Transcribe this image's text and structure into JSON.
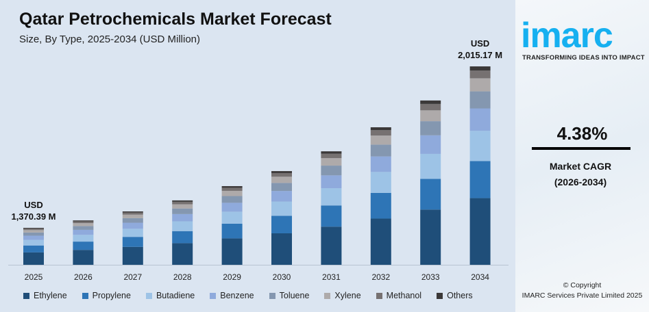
{
  "title": "Qatar Petrochemicals Market Forecast",
  "subtitle": "Size, By Type, 2025-2034 (USD Million)",
  "chart_data": {
    "type": "bar",
    "stacked": true,
    "categories": [
      "2025",
      "2026",
      "2027",
      "2028",
      "2029",
      "2030",
      "2031",
      "2032",
      "2033",
      "2034"
    ],
    "totals": [
      1370.39,
      1400,
      1436,
      1480,
      1537,
      1597,
      1676,
      1772,
      1879,
      2015.17
    ],
    "series_shares": [
      {
        "name": "Ethylene",
        "share": 0.336,
        "color": "#1f4e79"
      },
      {
        "name": "Propylene",
        "share": 0.187,
        "color": "#2e75b6"
      },
      {
        "name": "Butadiene",
        "share": 0.152,
        "color": "#9dc3e6"
      },
      {
        "name": "Benzene",
        "share": 0.113,
        "color": "#8faadc"
      },
      {
        "name": "Toluene",
        "share": 0.086,
        "color": "#8497b0"
      },
      {
        "name": "Xylene",
        "share": 0.066,
        "color": "#aeaaaa"
      },
      {
        "name": "Methanol",
        "share": 0.039,
        "color": "#767171"
      },
      {
        "name": "Others",
        "share": 0.021,
        "color": "#3b3838"
      }
    ],
    "annotations": [
      {
        "category": "2025",
        "line1": "USD",
        "line2": "1,370.39 M"
      },
      {
        "category": "2034",
        "line1": "USD",
        "line2": "2,015.17 M"
      }
    ],
    "legend": "bottom",
    "grid": false
  },
  "side": {
    "logo": "imarc",
    "tagline": "TRANSFORMING IDEAS INTO IMPACT",
    "cagr": "4.38%",
    "cagr_label": "Market CAGR",
    "cagr_period": "(2026-2034)",
    "copyright": "© Copyright",
    "company": "IMARC Services Private Limited 2025"
  }
}
